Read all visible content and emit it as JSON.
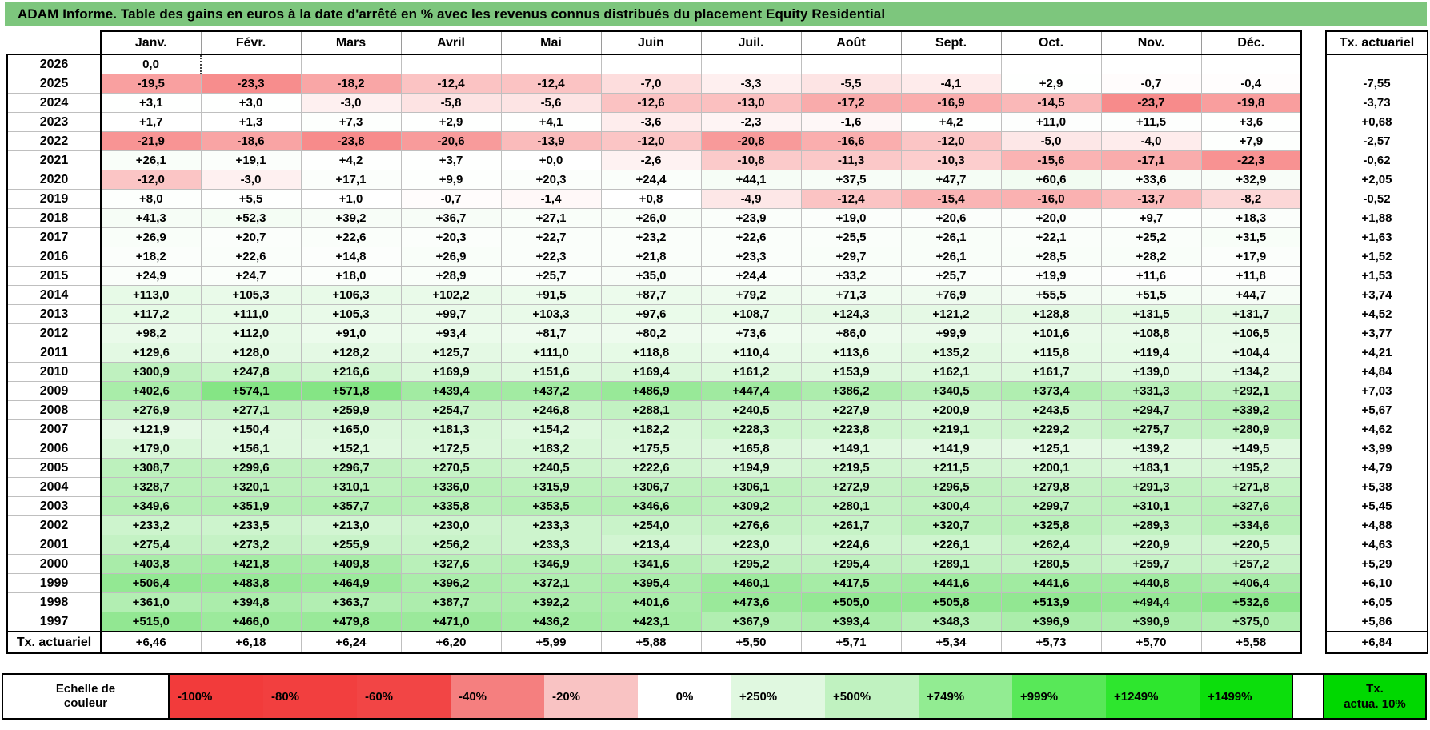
{
  "title": "ADAM Informe. Table des gains en euros à la date d'arrêté en % avec les revenus connus distribués du placement Equity Residential",
  "colors": {
    "title_bg": "#7DC67D",
    "grid": "#BFBFBF",
    "negative_full": "#F23C3C",
    "positive_full": "#00C800",
    "legend_right_bg": "#00D800"
  },
  "table": {
    "months": [
      "Janv.",
      "Févr.",
      "Mars",
      "Avril",
      "Mai",
      "Juin",
      "Juil.",
      "Août",
      "Sept.",
      "Oct.",
      "Nov.",
      "Déc."
    ],
    "rows": [
      {
        "year": "2026",
        "values": [
          "0,0",
          "",
          "",
          "",
          "",
          "",
          "",
          "",
          "",
          "",
          "",
          ""
        ],
        "tx": ""
      },
      {
        "year": "2025",
        "values": [
          "-19,5",
          "-23,3",
          "-18,2",
          "-12,4",
          "-12,4",
          "-7,0",
          "-3,3",
          "-5,5",
          "-4,1",
          "+2,9",
          "-0,7",
          "-0,4"
        ],
        "tx": "-7,55"
      },
      {
        "year": "2024",
        "values": [
          "+3,1",
          "+3,0",
          "-3,0",
          "-5,8",
          "-5,6",
          "-12,6",
          "-13,0",
          "-17,2",
          "-16,9",
          "-14,5",
          "-23,7",
          "-19,8"
        ],
        "tx": "-3,73"
      },
      {
        "year": "2023",
        "values": [
          "+1,7",
          "+1,3",
          "+7,3",
          "+2,9",
          "+4,1",
          "-3,6",
          "-2,3",
          "-1,6",
          "+4,2",
          "+11,0",
          "+11,5",
          "+3,6"
        ],
        "tx": "+0,68"
      },
      {
        "year": "2022",
        "values": [
          "-21,9",
          "-18,6",
          "-23,8",
          "-20,6",
          "-13,9",
          "-12,0",
          "-20,8",
          "-16,6",
          "-12,0",
          "-5,0",
          "-4,0",
          "+7,9"
        ],
        "tx": "-2,57"
      },
      {
        "year": "2021",
        "values": [
          "+26,1",
          "+19,1",
          "+4,2",
          "+3,7",
          "+0,0",
          "-2,6",
          "-10,8",
          "-11,3",
          "-10,3",
          "-15,6",
          "-17,1",
          "-22,3"
        ],
        "tx": "-0,62"
      },
      {
        "year": "2020",
        "values": [
          "-12,0",
          "-3,0",
          "+17,1",
          "+9,9",
          "+20,3",
          "+24,4",
          "+44,1",
          "+37,5",
          "+47,7",
          "+60,6",
          "+33,6",
          "+32,9"
        ],
        "tx": "+2,05"
      },
      {
        "year": "2019",
        "values": [
          "+8,0",
          "+5,5",
          "+1,0",
          "-0,7",
          "-1,4",
          "+0,8",
          "-4,9",
          "-12,4",
          "-15,4",
          "-16,0",
          "-13,7",
          "-8,2"
        ],
        "tx": "-0,52"
      },
      {
        "year": "2018",
        "values": [
          "+41,3",
          "+52,3",
          "+39,2",
          "+36,7",
          "+27,1",
          "+26,0",
          "+23,9",
          "+19,0",
          "+20,6",
          "+20,0",
          "+9,7",
          "+18,3"
        ],
        "tx": "+1,88"
      },
      {
        "year": "2017",
        "values": [
          "+26,9",
          "+20,7",
          "+22,6",
          "+20,3",
          "+22,7",
          "+23,2",
          "+22,6",
          "+25,5",
          "+26,1",
          "+22,1",
          "+25,2",
          "+31,5"
        ],
        "tx": "+1,63"
      },
      {
        "year": "2016",
        "values": [
          "+18,2",
          "+22,6",
          "+14,8",
          "+26,9",
          "+22,3",
          "+21,8",
          "+23,3",
          "+29,7",
          "+26,1",
          "+28,5",
          "+28,2",
          "+17,9"
        ],
        "tx": "+1,52"
      },
      {
        "year": "2015",
        "values": [
          "+24,9",
          "+24,7",
          "+18,0",
          "+28,9",
          "+25,7",
          "+35,0",
          "+24,4",
          "+33,2",
          "+25,7",
          "+19,9",
          "+11,6",
          "+11,8"
        ],
        "tx": "+1,53"
      },
      {
        "year": "2014",
        "values": [
          "+113,0",
          "+105,3",
          "+106,3",
          "+102,2",
          "+91,5",
          "+87,7",
          "+79,2",
          "+71,3",
          "+76,9",
          "+55,5",
          "+51,5",
          "+44,7"
        ],
        "tx": "+3,74"
      },
      {
        "year": "2013",
        "values": [
          "+117,2",
          "+111,0",
          "+105,3",
          "+99,7",
          "+103,3",
          "+97,6",
          "+108,7",
          "+124,3",
          "+121,2",
          "+128,8",
          "+131,5",
          "+131,7"
        ],
        "tx": "+4,52"
      },
      {
        "year": "2012",
        "values": [
          "+98,2",
          "+112,0",
          "+91,0",
          "+93,4",
          "+81,7",
          "+80,2",
          "+73,6",
          "+86,0",
          "+99,9",
          "+101,6",
          "+108,8",
          "+106,5"
        ],
        "tx": "+3,77"
      },
      {
        "year": "2011",
        "values": [
          "+129,6",
          "+128,0",
          "+128,2",
          "+125,7",
          "+111,0",
          "+118,8",
          "+110,4",
          "+113,6",
          "+135,2",
          "+115,8",
          "+119,4",
          "+104,4"
        ],
        "tx": "+4,21"
      },
      {
        "year": "2010",
        "values": [
          "+300,9",
          "+247,8",
          "+216,6",
          "+169,9",
          "+151,6",
          "+169,4",
          "+161,2",
          "+153,9",
          "+162,1",
          "+161,7",
          "+139,0",
          "+134,2"
        ],
        "tx": "+4,84"
      },
      {
        "year": "2009",
        "values": [
          "+402,6",
          "+574,1",
          "+571,8",
          "+439,4",
          "+437,2",
          "+486,9",
          "+447,4",
          "+386,2",
          "+340,5",
          "+373,4",
          "+331,3",
          "+292,1"
        ],
        "tx": "+7,03"
      },
      {
        "year": "2008",
        "values": [
          "+276,9",
          "+277,1",
          "+259,9",
          "+254,7",
          "+246,8",
          "+288,1",
          "+240,5",
          "+227,9",
          "+200,9",
          "+243,5",
          "+294,7",
          "+339,2"
        ],
        "tx": "+5,67"
      },
      {
        "year": "2007",
        "values": [
          "+121,9",
          "+150,4",
          "+165,0",
          "+181,3",
          "+154,2",
          "+182,2",
          "+228,3",
          "+223,8",
          "+219,1",
          "+229,2",
          "+275,7",
          "+280,9"
        ],
        "tx": "+4,62"
      },
      {
        "year": "2006",
        "values": [
          "+179,0",
          "+156,1",
          "+152,1",
          "+172,5",
          "+183,2",
          "+175,5",
          "+165,8",
          "+149,1",
          "+141,9",
          "+125,1",
          "+139,2",
          "+149,5"
        ],
        "tx": "+3,99"
      },
      {
        "year": "2005",
        "values": [
          "+308,7",
          "+299,6",
          "+296,7",
          "+270,5",
          "+240,5",
          "+222,6",
          "+194,9",
          "+219,5",
          "+211,5",
          "+200,1",
          "+183,1",
          "+195,2"
        ],
        "tx": "+4,79"
      },
      {
        "year": "2004",
        "values": [
          "+328,7",
          "+320,1",
          "+310,1",
          "+336,0",
          "+315,9",
          "+306,7",
          "+306,1",
          "+272,9",
          "+296,5",
          "+279,8",
          "+291,3",
          "+271,8"
        ],
        "tx": "+5,38"
      },
      {
        "year": "2003",
        "values": [
          "+349,6",
          "+351,9",
          "+357,7",
          "+335,8",
          "+353,5",
          "+346,6",
          "+309,2",
          "+280,1",
          "+300,4",
          "+299,7",
          "+310,1",
          "+327,6"
        ],
        "tx": "+5,45"
      },
      {
        "year": "2002",
        "values": [
          "+233,2",
          "+233,5",
          "+213,0",
          "+230,0",
          "+233,3",
          "+254,0",
          "+276,6",
          "+261,7",
          "+320,7",
          "+325,8",
          "+289,3",
          "+334,6"
        ],
        "tx": "+4,88"
      },
      {
        "year": "2001",
        "values": [
          "+275,4",
          "+273,2",
          "+255,9",
          "+256,2",
          "+233,3",
          "+213,4",
          "+223,0",
          "+224,6",
          "+226,1",
          "+262,4",
          "+220,9",
          "+220,5"
        ],
        "tx": "+4,63"
      },
      {
        "year": "2000",
        "values": [
          "+403,8",
          "+421,8",
          "+409,8",
          "+327,6",
          "+346,9",
          "+341,6",
          "+295,2",
          "+295,4",
          "+289,1",
          "+280,5",
          "+259,7",
          "+257,2"
        ],
        "tx": "+5,29"
      },
      {
        "year": "1999",
        "values": [
          "+506,4",
          "+483,8",
          "+464,9",
          "+396,2",
          "+372,1",
          "+395,4",
          "+460,1",
          "+417,5",
          "+441,6",
          "+441,6",
          "+440,8",
          "+406,4"
        ],
        "tx": "+6,10"
      },
      {
        "year": "1998",
        "values": [
          "+361,0",
          "+394,8",
          "+363,7",
          "+387,7",
          "+392,2",
          "+401,6",
          "+473,6",
          "+505,0",
          "+505,8",
          "+513,9",
          "+494,4",
          "+532,6"
        ],
        "tx": "+6,05"
      },
      {
        "year": "1997",
        "values": [
          "+515,0",
          "+466,0",
          "+479,8",
          "+471,0",
          "+436,2",
          "+423,1",
          "+367,9",
          "+393,4",
          "+348,3",
          "+396,9",
          "+390,9",
          "+375,0"
        ],
        "tx": "+5,86"
      }
    ],
    "footer_label": "Tx. actuariel",
    "footer_values": [
      "+6,46",
      "+6,18",
      "+6,24",
      "+6,20",
      "+5,99",
      "+5,88",
      "+5,50",
      "+5,71",
      "+5,34",
      "+5,73",
      "+5,70",
      "+5,58"
    ],
    "footer_tx": "+6,84"
  },
  "actuarial_column": {
    "header": "Tx. actuariel"
  },
  "legend": {
    "label_line1": "Echelle de",
    "label_line2": "couleur",
    "cells": [
      {
        "label": "-100%",
        "color": "#F23B3B"
      },
      {
        "label": "-80%",
        "color": "#F23F3F"
      },
      {
        "label": "-60%",
        "color": "#F24545"
      },
      {
        "label": "-40%",
        "color": "#F57F7F"
      },
      {
        "label": "-20%",
        "color": "#F9C3C3"
      },
      {
        "label": "0%",
        "color": "#FFFFFF"
      },
      {
        "label": "+250%",
        "color": "#E0F8E0"
      },
      {
        "label": "+500%",
        "color": "#C0F2C0"
      },
      {
        "label": "+749%",
        "color": "#92EC92"
      },
      {
        "label": "+999%",
        "color": "#58E858"
      },
      {
        "label": "+1249%",
        "color": "#2EE62E"
      },
      {
        "label": "+1499%",
        "color": "#0CDE0C"
      }
    ],
    "right_box_line1": "Tx.",
    "right_box_line2": "actua. 10%"
  }
}
